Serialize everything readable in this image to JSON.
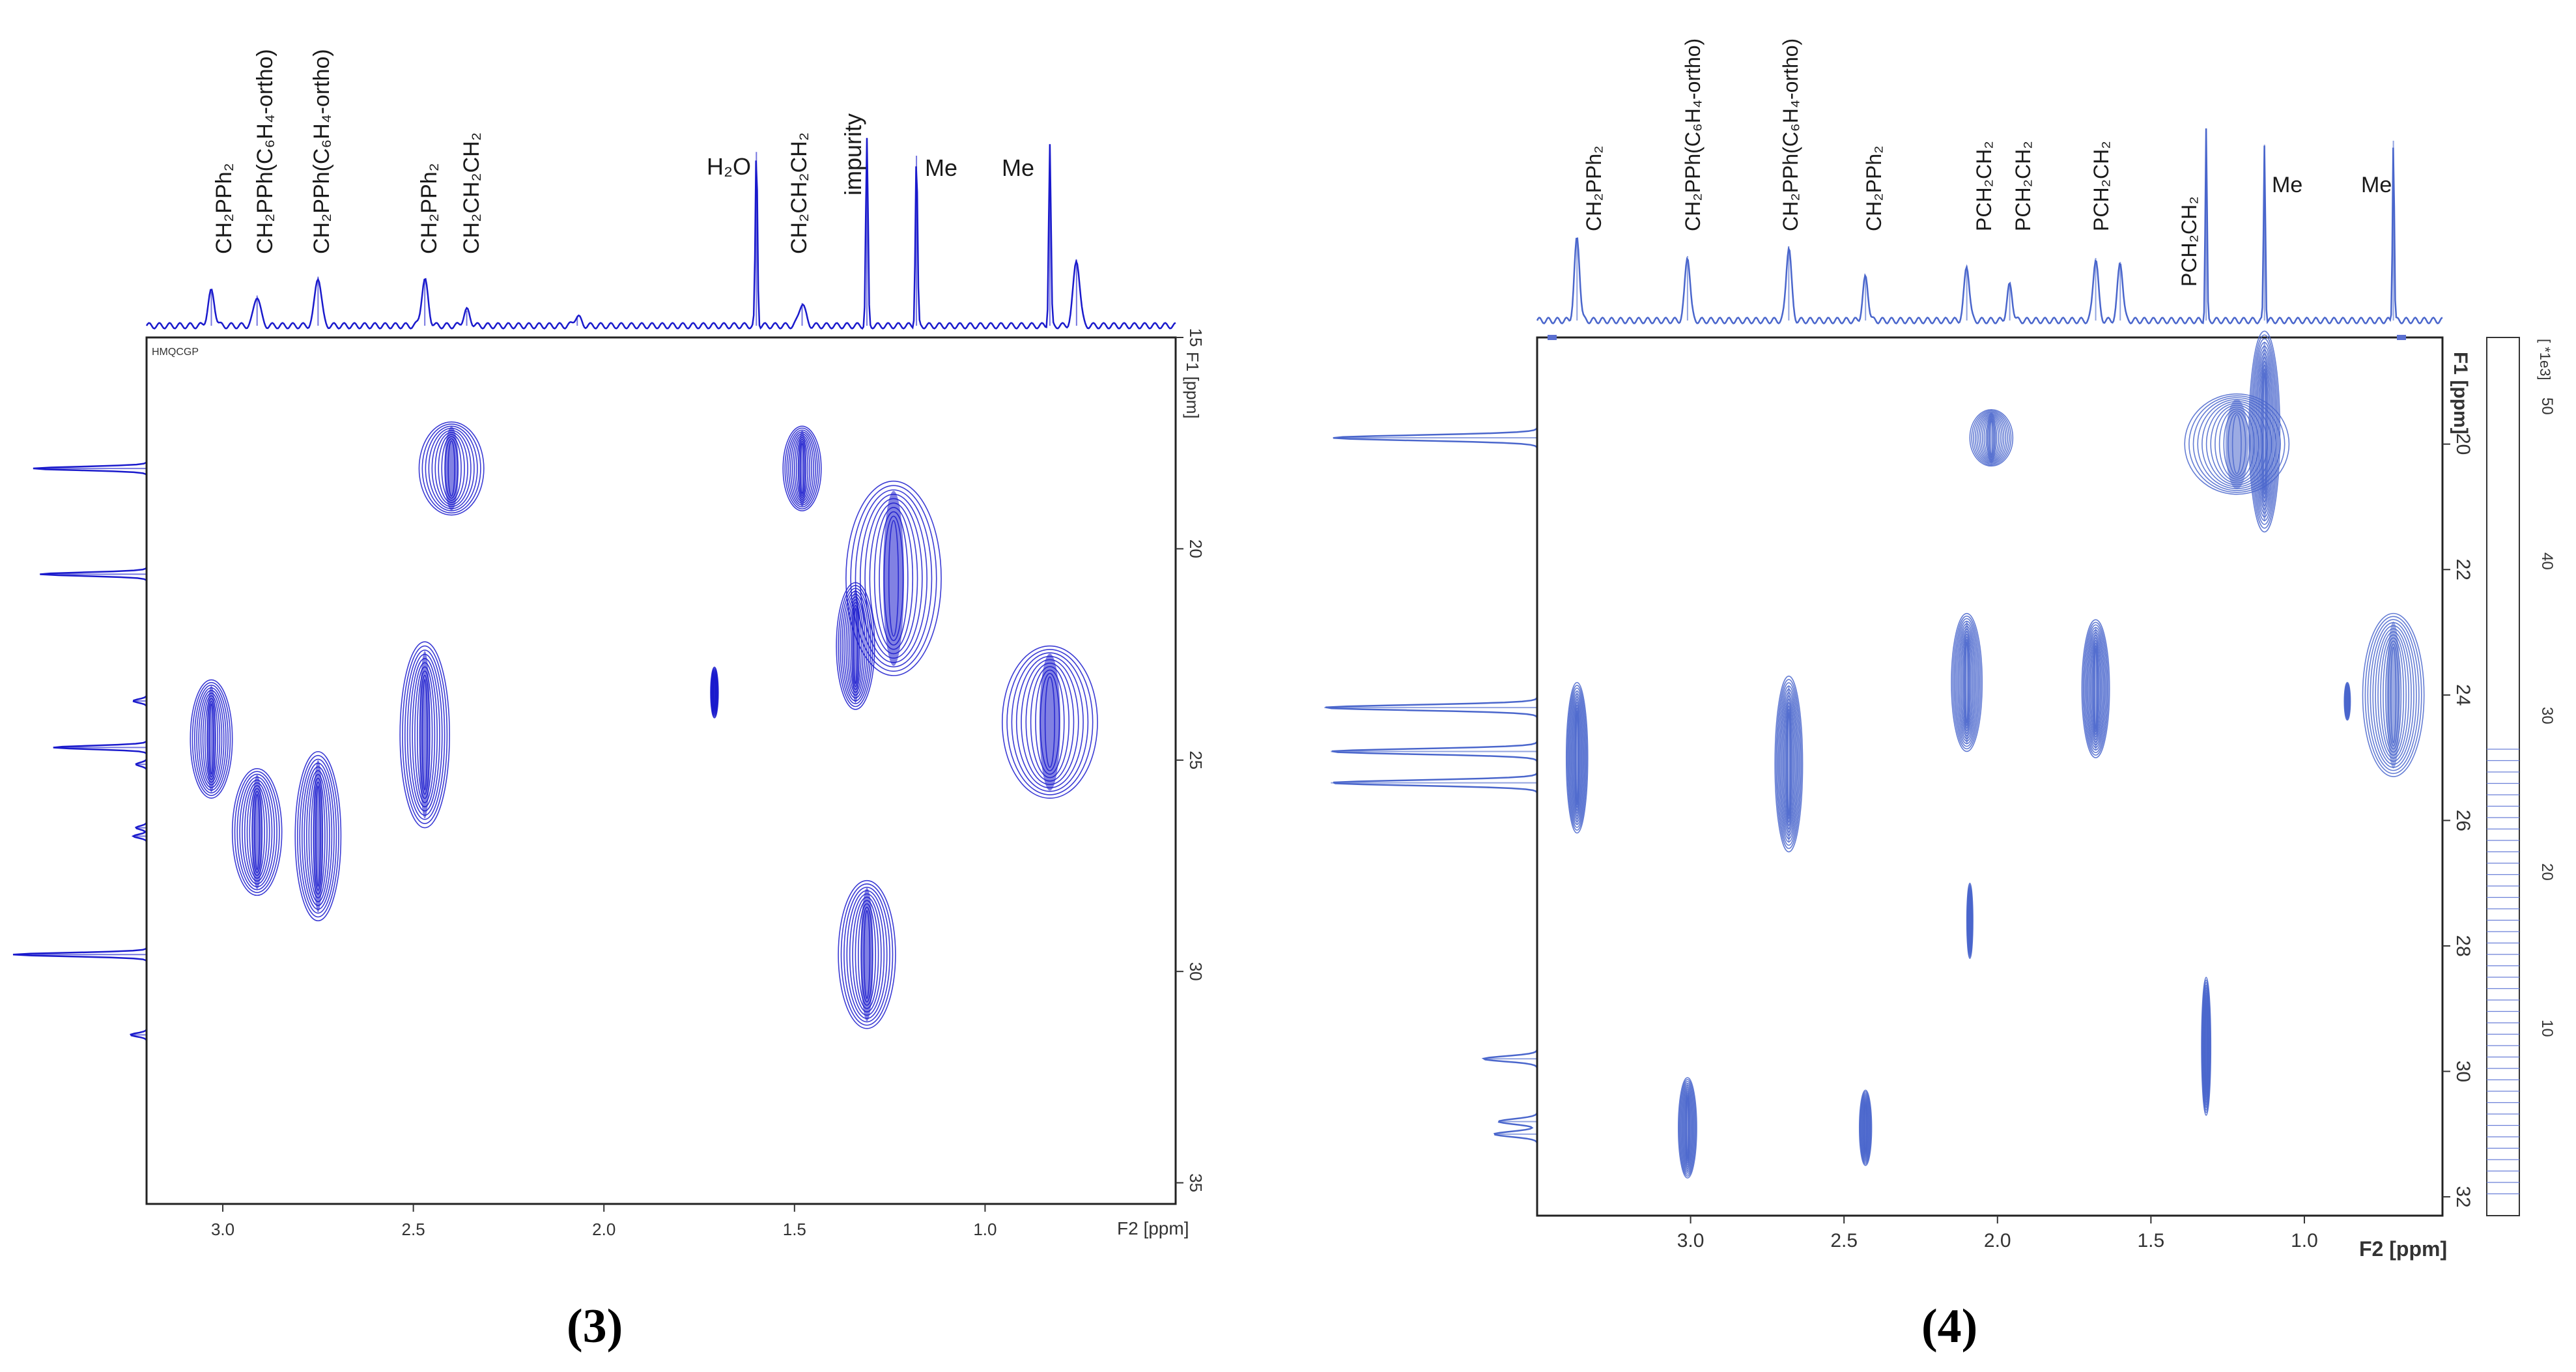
{
  "figure": {
    "panels": [
      "(3)",
      "(4)"
    ]
  },
  "colors": {
    "panel3": "#1a1acc",
    "panel4": "#4a66cc",
    "axis": "#333333"
  },
  "chart_data": [
    {
      "type": "heatmap",
      "title": "(3)",
      "pulse_program": "HMQCGP",
      "xlabel": "F2 [ppm]",
      "ylabel": "F1 [ppm]",
      "xlim": [
        3.2,
        0.5
      ],
      "ylim": [
        15,
        35.5
      ],
      "x_ticks": [
        3.0,
        2.5,
        2.0,
        1.5,
        1.0
      ],
      "x_tick_labels": [
        "3.0",
        "2.5",
        "2.0",
        "1.5",
        "1.0"
      ],
      "y_ticks": [
        15,
        20,
        25,
        30,
        35
      ],
      "y_tick_labels": [
        "15",
        "20",
        "25",
        "30",
        "35"
      ],
      "f2_peaks": [
        {
          "x": 3.03,
          "label": "CH2PPh2",
          "h": 0.18
        },
        {
          "x": 2.91,
          "label": "CH2PPh(C6H4-ortho)",
          "h": 0.16
        },
        {
          "x": 2.75,
          "label": "CH2PPh(C6H4-ortho)",
          "h": 0.26
        },
        {
          "x": 2.47,
          "label": "CH2PPh2",
          "h": 0.24
        },
        {
          "x": 2.36,
          "label": "CH2CH2CH2",
          "h": 0.08
        },
        {
          "x": 2.07,
          "label": "",
          "h": 0.05
        },
        {
          "x": 1.6,
          "label": "H2O",
          "h": 0.92
        },
        {
          "x": 1.48,
          "label": "CH2CH2CH2",
          "h": 0.12
        },
        {
          "x": 1.31,
          "label": "impurity",
          "h": 0.98
        },
        {
          "x": 1.18,
          "label": "Me",
          "h": 0.9
        },
        {
          "x": 0.83,
          "label": "Me",
          "h": 0.96
        },
        {
          "x": 0.76,
          "label": "",
          "h": 0.35
        }
      ],
      "peak_labels": {
        "CH2PPh2_a": "CH₂PPh₂",
        "CH2PPh_b": "CH₂PPh(C₆H₄-ortho)",
        "CH2PPh_c": "CH₂PPh(C₆H₄-ortho)",
        "CH2PPh2_d": "CH₂PPh₂",
        "CH2CH2CH2_e": "CH₂CH₂CH₂",
        "H2O": "H₂O",
        "CH2CH2CH2_f": "CH₂CH₂CH₂",
        "impurity": "impurity",
        "Me1": "Me",
        "Me2": "Me"
      },
      "f1_peaks": [
        {
          "y": 18.1,
          "h": 0.85
        },
        {
          "y": 20.6,
          "h": 0.8
        },
        {
          "y": 23.6,
          "h": 0.1
        },
        {
          "y": 24.7,
          "h": 0.7
        },
        {
          "y": 25.1,
          "h": 0.08
        },
        {
          "y": 26.6,
          "h": 0.08
        },
        {
          "y": 26.8,
          "h": 0.1
        },
        {
          "y": 29.6,
          "h": 1.0
        },
        {
          "y": 31.5,
          "h": 0.12
        }
      ],
      "cross_peaks": [
        {
          "x": 2.4,
          "y": 18.1,
          "w": 0.17,
          "hgt": 2.2
        },
        {
          "x": 1.48,
          "y": 18.1,
          "w": 0.1,
          "hgt": 2.0
        },
        {
          "x": 1.24,
          "y": 20.7,
          "w": 0.25,
          "hgt": 4.6
        },
        {
          "x": 1.34,
          "y": 22.3,
          "w": 0.1,
          "hgt": 3.0
        },
        {
          "x": 3.03,
          "y": 24.5,
          "w": 0.11,
          "hgt": 2.8
        },
        {
          "x": 2.47,
          "y": 24.4,
          "w": 0.13,
          "hgt": 4.4
        },
        {
          "x": 1.71,
          "y": 23.4,
          "w": 0.02,
          "hgt": 1.2
        },
        {
          "x": 0.83,
          "y": 24.1,
          "w": 0.25,
          "hgt": 3.6
        },
        {
          "x": 2.91,
          "y": 26.7,
          "w": 0.13,
          "hgt": 3.0
        },
        {
          "x": 2.75,
          "y": 26.8,
          "w": 0.12,
          "hgt": 4.0
        },
        {
          "x": 1.31,
          "y": 29.6,
          "w": 0.15,
          "hgt": 3.5
        }
      ]
    },
    {
      "type": "heatmap",
      "title": "(4)",
      "xlabel": "F2 [ppm]",
      "ylabel": "F1 [ppm]",
      "xlim": [
        3.5,
        0.55
      ],
      "ylim": [
        18.3,
        32.3
      ],
      "x_ticks": [
        3.0,
        2.5,
        2.0,
        1.5,
        1.0
      ],
      "x_tick_labels": [
        "3.0",
        "2.5",
        "2.0",
        "1.5",
        "1.0"
      ],
      "y_ticks": [
        20,
        22,
        24,
        26,
        28,
        30,
        32
      ],
      "y_tick_labels": [
        "20",
        "22",
        "24",
        "26",
        "28",
        "30",
        "32"
      ],
      "right_axis_label": "[ *1e3]",
      "right_axis_ticks": [
        "50",
        "40",
        "30",
        "20",
        "10"
      ],
      "f2_peaks": [
        {
          "x": 3.37,
          "label": "CH2PPh2",
          "h": 0.42
        },
        {
          "x": 3.01,
          "label": "CH2PPh(C6H4-ortho)",
          "h": 0.33
        },
        {
          "x": 2.68,
          "label": "CH2PPh(C6H4-ortho)",
          "h": 0.38
        },
        {
          "x": 2.43,
          "label": "CH2PPh2",
          "h": 0.22
        },
        {
          "x": 2.1,
          "label": "PCH2CH2",
          "h": 0.28
        },
        {
          "x": 1.96,
          "label": "PCH2CH2",
          "h": 0.18
        },
        {
          "x": 1.68,
          "label": "PCH2CH2",
          "h": 0.32
        },
        {
          "x": 1.6,
          "label": "",
          "h": 0.3
        },
        {
          "x": 1.32,
          "label": "PCH2CH2",
          "h": 0.98
        },
        {
          "x": 1.13,
          "label": "Me",
          "h": 0.9
        },
        {
          "x": 0.71,
          "label": "Me",
          "h": 0.92
        }
      ],
      "peak_labels": {
        "CH2PPh2_a": "CH₂PPh₂",
        "CH2PPh_b": "CH₂PPh(C₆H₄-ortho)",
        "CH2PPh_c": "CH₂PPh(C₆H₄-ortho)",
        "CH2PPh2_d": "CH₂PPh₂",
        "PCH2CH2_e": "PCH₂CH₂",
        "PCH2CH2_f": "PCH₂CH₂",
        "PCH2CH2_g": "PCH₂CH₂",
        "PCH2CH2_h": "PCH₂CH₂",
        "Me1": "Me",
        "Me2": "Me"
      },
      "f1_peaks": [
        {
          "y": 19.9,
          "h": 0.95
        },
        {
          "y": 24.2,
          "h": 0.99
        },
        {
          "y": 24.9,
          "h": 0.96
        },
        {
          "y": 25.4,
          "h": 0.96
        },
        {
          "y": 29.8,
          "h": 0.25
        },
        {
          "y": 30.8,
          "h": 0.18
        },
        {
          "y": 31.0,
          "h": 0.2
        }
      ],
      "cross_peaks": [
        {
          "x": 2.02,
          "y": 19.9,
          "w": 0.14,
          "hgt": 0.9
        },
        {
          "x": 1.22,
          "y": 20.0,
          "w": 0.34,
          "hgt": 1.6
        },
        {
          "x": 1.13,
          "y": 19.8,
          "w": 0.1,
          "hgt": 3.2
        },
        {
          "x": 2.1,
          "y": 23.8,
          "w": 0.1,
          "hgt": 2.2
        },
        {
          "x": 1.68,
          "y": 23.9,
          "w": 0.09,
          "hgt": 2.2
        },
        {
          "x": 0.71,
          "y": 24.0,
          "w": 0.2,
          "hgt": 2.6
        },
        {
          "x": 0.86,
          "y": 24.1,
          "w": 0.02,
          "hgt": 0.6
        },
        {
          "x": 3.37,
          "y": 25.0,
          "w": 0.07,
          "hgt": 2.4
        },
        {
          "x": 2.68,
          "y": 25.1,
          "w": 0.09,
          "hgt": 2.8
        },
        {
          "x": 2.09,
          "y": 27.6,
          "w": 0.02,
          "hgt": 1.2
        },
        {
          "x": 1.32,
          "y": 29.6,
          "w": 0.03,
          "hgt": 2.2
        },
        {
          "x": 3.01,
          "y": 30.9,
          "w": 0.06,
          "hgt": 1.6
        },
        {
          "x": 2.43,
          "y": 30.9,
          "w": 0.04,
          "hgt": 1.2
        }
      ]
    }
  ]
}
